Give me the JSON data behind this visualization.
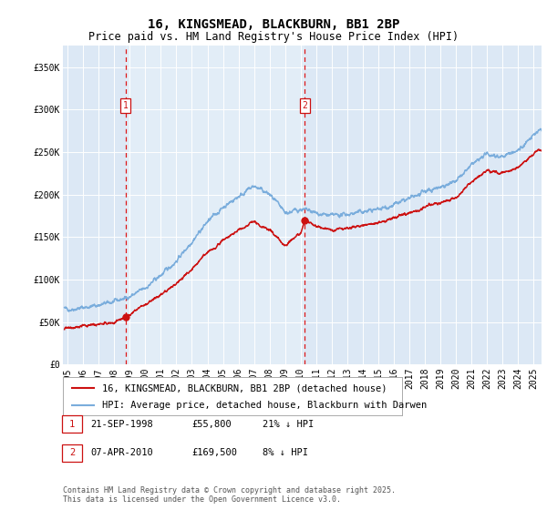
{
  "title": "16, KINGSMEAD, BLACKBURN, BB1 2BP",
  "subtitle": "Price paid vs. HM Land Registry's House Price Index (HPI)",
  "ylabel_ticks": [
    "£0",
    "£50K",
    "£100K",
    "£150K",
    "£200K",
    "£250K",
    "£300K",
    "£350K"
  ],
  "ytick_values": [
    0,
    50000,
    100000,
    150000,
    200000,
    250000,
    300000,
    350000
  ],
  "ylim": [
    0,
    375000
  ],
  "xlim_start": 1994.7,
  "xlim_end": 2025.5,
  "xticks": [
    1995,
    1996,
    1997,
    1998,
    1999,
    2000,
    2001,
    2002,
    2003,
    2004,
    2005,
    2006,
    2007,
    2008,
    2009,
    2010,
    2011,
    2012,
    2013,
    2014,
    2015,
    2016,
    2017,
    2018,
    2019,
    2020,
    2021,
    2022,
    2023,
    2024,
    2025
  ],
  "bg_color": "#dce8f5",
  "highlight_bg": "#e8f2fa",
  "plot_bg": "#ffffff",
  "hpi_color": "#7aaddc",
  "price_color": "#cc1111",
  "vline_color": "#dd0000",
  "marker1_x": 1998.72,
  "marker1_y": 55800,
  "marker1_label": "1",
  "marker1_date": "21-SEP-1998",
  "marker1_price": "£55,800",
  "marker1_hpi": "21% ↓ HPI",
  "marker2_x": 2010.27,
  "marker2_y": 169500,
  "marker2_label": "2",
  "marker2_date": "07-APR-2010",
  "marker2_price": "£169,500",
  "marker2_hpi": "8% ↓ HPI",
  "legend_line1": "16, KINGSMEAD, BLACKBURN, BB1 2BP (detached house)",
  "legend_line2": "HPI: Average price, detached house, Blackburn with Darwen",
  "footer": "Contains HM Land Registry data © Crown copyright and database right 2025.\nThis data is licensed under the Open Government Licence v3.0.",
  "title_fontsize": 10,
  "subtitle_fontsize": 8.5,
  "tick_fontsize": 7,
  "legend_fontsize": 7.5,
  "footer_fontsize": 6
}
